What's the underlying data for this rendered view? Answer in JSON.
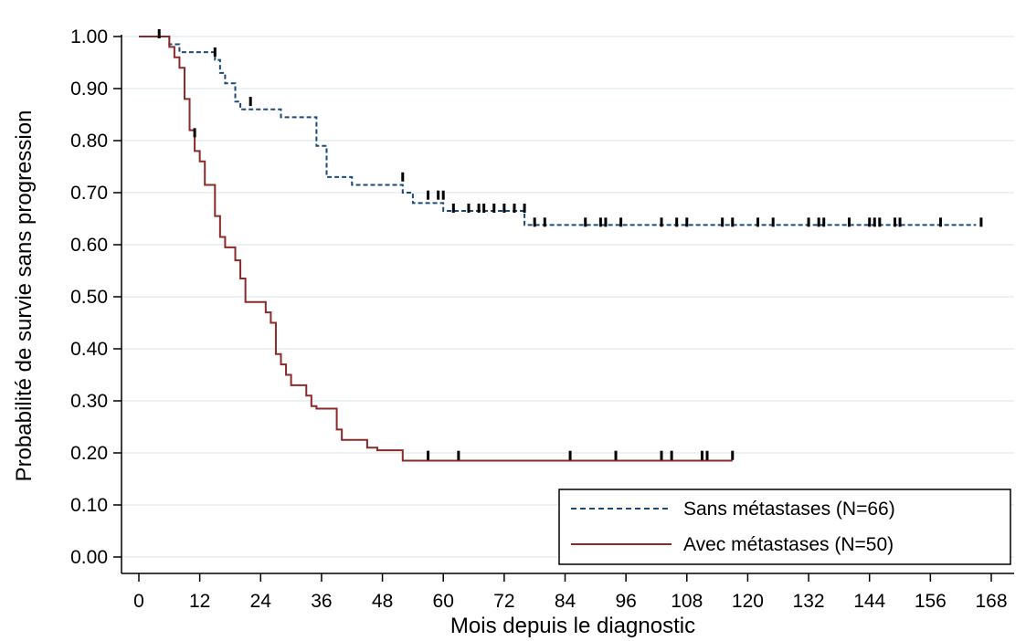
{
  "chart_data": {
    "type": "line",
    "title": "",
    "xlabel": "Mois depuis le diagnostic",
    "ylabel": "Probabilité de survie sans progression",
    "xlim": [
      0,
      168
    ],
    "ylim": [
      0,
      1
    ],
    "x_ticks": [
      "0",
      "12",
      "24",
      "36",
      "48",
      "60",
      "72",
      "84",
      "96",
      "108",
      "120",
      "132",
      "144",
      "156",
      "168"
    ],
    "y_ticks": [
      "0.00",
      "0.10",
      "0.20",
      "0.30",
      "0.40",
      "0.50",
      "0.60",
      "0.70",
      "0.80",
      "0.90",
      "1.00"
    ],
    "grid": "horizontal",
    "legend_position": "bottom-right",
    "step": true,
    "series": [
      {
        "name": "Sans métastases (N=66)",
        "color": "#1a4a7a",
        "dash": "dashed",
        "x": [
          0,
          6,
          7,
          8,
          15,
          16,
          17,
          19,
          20,
          24,
          28,
          35,
          37,
          42,
          52,
          54,
          60,
          76,
          165
        ],
        "y": [
          1.0,
          0.985,
          0.985,
          0.97,
          0.955,
          0.93,
          0.91,
          0.875,
          0.86,
          0.86,
          0.845,
          0.79,
          0.73,
          0.715,
          0.7,
          0.68,
          0.665,
          0.638,
          0.638
        ],
        "censor_x": [
          4,
          15,
          22,
          52,
          57,
          59,
          60,
          62,
          65,
          67,
          68,
          70,
          72,
          74,
          76,
          78,
          80,
          88,
          91,
          92,
          95,
          103,
          106,
          108,
          115,
          117,
          122,
          125,
          132,
          134,
          135,
          140,
          144,
          145,
          146,
          149,
          150,
          158,
          166
        ],
        "censor_y": [
          1.0,
          0.965,
          0.87,
          0.725,
          0.69,
          0.69,
          0.69,
          0.665,
          0.665,
          0.665,
          0.665,
          0.665,
          0.665,
          0.665,
          0.665,
          0.638,
          0.638,
          0.638,
          0.638,
          0.638,
          0.638,
          0.638,
          0.638,
          0.638,
          0.638,
          0.638,
          0.638,
          0.638,
          0.638,
          0.638,
          0.638,
          0.638,
          0.638,
          0.638,
          0.638,
          0.638,
          0.638,
          0.638,
          0.638
        ]
      },
      {
        "name": "Avec métastases (N=50)",
        "color": "#8b2a2a",
        "dash": "solid",
        "x": [
          0,
          6,
          7,
          8,
          9,
          10,
          11,
          12,
          13,
          15,
          16,
          17,
          19,
          20,
          21,
          25,
          26,
          27,
          28,
          29,
          30,
          33,
          34,
          35,
          39,
          40,
          45,
          47,
          52,
          117
        ],
        "y": [
          1.0,
          0.98,
          0.96,
          0.94,
          0.88,
          0.82,
          0.78,
          0.76,
          0.715,
          0.655,
          0.615,
          0.595,
          0.57,
          0.535,
          0.49,
          0.47,
          0.45,
          0.39,
          0.37,
          0.35,
          0.33,
          0.31,
          0.29,
          0.285,
          0.245,
          0.225,
          0.21,
          0.205,
          0.185,
          0.185
        ],
        "censor_x": [
          11,
          57,
          63,
          85,
          94,
          103,
          105,
          111,
          112,
          117
        ],
        "censor_y": [
          0.81,
          0.19,
          0.19,
          0.19,
          0.19,
          0.19,
          0.19,
          0.19,
          0.19,
          0.19
        ]
      }
    ]
  }
}
